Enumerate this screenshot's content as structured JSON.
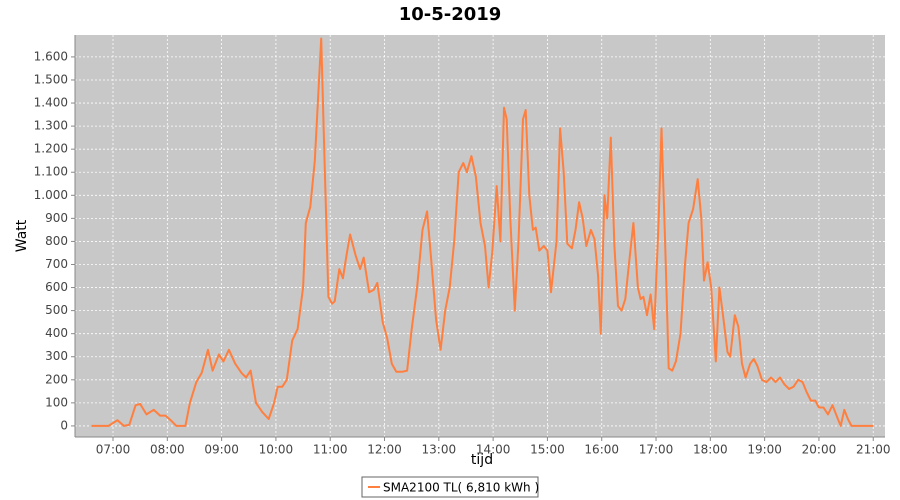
{
  "chart_data": {
    "type": "line",
    "title": "10-5-2019",
    "x_label": "tijd",
    "y_label": "Watt",
    "x": [
      "06:36",
      "06:55",
      "07:05",
      "07:12",
      "07:18",
      "07:25",
      "07:30",
      "07:37",
      "07:45",
      "07:52",
      "07:58",
      "08:05",
      "08:10",
      "08:15",
      "08:20",
      "08:25",
      "08:32",
      "08:38",
      "08:45",
      "08:50",
      "08:57",
      "09:02",
      "09:08",
      "09:15",
      "09:22",
      "09:27",
      "09:32",
      "09:38",
      "09:45",
      "09:52",
      "09:58",
      "10:02",
      "10:07",
      "10:12",
      "10:18",
      "10:24",
      "10:30",
      "10:33",
      "10:38",
      "10:43",
      "10:48",
      "10:50",
      "10:53",
      "10:58",
      "11:02",
      "11:05",
      "11:10",
      "11:14",
      "11:18",
      "11:22",
      "11:28",
      "11:33",
      "11:37",
      "11:43",
      "11:48",
      "11:52",
      "11:58",
      "12:03",
      "12:08",
      "12:13",
      "12:20",
      "12:25",
      "12:30",
      "12:36",
      "12:42",
      "12:47",
      "12:52",
      "12:57",
      "13:02",
      "13:07",
      "13:12",
      "13:17",
      "13:22",
      "13:27",
      "13:31",
      "13:36",
      "13:41",
      "13:46",
      "13:51",
      "13:55",
      "13:59",
      "14:04",
      "14:08",
      "14:12",
      "14:15",
      "14:19",
      "14:24",
      "14:28",
      "14:33",
      "14:36",
      "14:40",
      "14:44",
      "14:47",
      "14:51",
      "14:56",
      "15:00",
      "15:04",
      "15:10",
      "15:14",
      "15:18",
      "15:22",
      "15:27",
      "15:31",
      "15:35",
      "15:39",
      "15:43",
      "15:48",
      "15:52",
      "15:56",
      "15:59",
      "16:03",
      "16:06",
      "16:10",
      "16:14",
      "16:18",
      "16:22",
      "16:26",
      "16:30",
      "16:35",
      "16:40",
      "16:43",
      "16:46",
      "16:50",
      "16:54",
      "16:58",
      "17:03",
      "17:06",
      "17:10",
      "17:14",
      "17:18",
      "17:22",
      "17:27",
      "17:32",
      "17:36",
      "17:41",
      "17:46",
      "17:50",
      "17:53",
      "17:57",
      "18:01",
      "18:06",
      "18:10",
      "18:14",
      "18:19",
      "18:22",
      "18:27",
      "18:31",
      "18:35",
      "18:39",
      "18:44",
      "18:48",
      "18:52",
      "18:57",
      "19:02",
      "19:07",
      "19:12",
      "19:17",
      "19:22",
      "19:27",
      "19:32",
      "19:37",
      "19:42",
      "19:46",
      "19:51",
      "19:56",
      "20:00",
      "20:05",
      "20:10",
      "20:15",
      "20:20",
      "20:24",
      "20:28",
      "20:32",
      "20:36",
      "20:45",
      "21:00"
    ],
    "series": [
      {
        "name": "SMA2100 TL( 6,810 kWh )",
        "color": "#ff7f3f",
        "values": [
          0,
          0,
          25,
          0,
          5,
          90,
          95,
          50,
          70,
          45,
          45,
          20,
          0,
          0,
          0,
          100,
          190,
          230,
          330,
          240,
          310,
          280,
          330,
          270,
          230,
          210,
          240,
          100,
          60,
          30,
          100,
          170,
          170,
          200,
          370,
          420,
          600,
          880,
          950,
          1150,
          1530,
          1680,
          1250,
          560,
          530,
          540,
          680,
          640,
          740,
          830,
          740,
          680,
          730,
          580,
          590,
          620,
          450,
          380,
          270,
          235,
          235,
          240,
          420,
          600,
          850,
          930,
          700,
          460,
          330,
          500,
          600,
          800,
          1100,
          1140,
          1100,
          1170,
          1080,
          880,
          780,
          600,
          750,
          1040,
          800,
          1380,
          1330,
          900,
          500,
          800,
          1330,
          1370,
          1000,
          850,
          860,
          760,
          780,
          760,
          580,
          800,
          1290,
          1100,
          790,
          770,
          850,
          970,
          900,
          780,
          850,
          810,
          650,
          400,
          1000,
          900,
          1250,
          780,
          520,
          500,
          550,
          700,
          880,
          600,
          550,
          560,
          480,
          570,
          420,
          900,
          1290,
          800,
          250,
          240,
          280,
          400,
          700,
          880,
          940,
          1070,
          900,
          630,
          710,
          600,
          280,
          600,
          480,
          320,
          300,
          480,
          430,
          270,
          210,
          270,
          290,
          260,
          200,
          190,
          210,
          190,
          210,
          180,
          160,
          170,
          200,
          190,
          150,
          110,
          110,
          80,
          80,
          50,
          90,
          40,
          0,
          70,
          30,
          0,
          0,
          0
        ]
      }
    ],
    "xlim": [
      "06:18",
      "21:13"
    ],
    "xticks": [
      "07:00",
      "08:00",
      "09:00",
      "10:00",
      "11:00",
      "12:00",
      "13:00",
      "14:00",
      "15:00",
      "16:00",
      "17:00",
      "18:00",
      "19:00",
      "20:00",
      "21:00"
    ],
    "ylim": [
      -48,
      1695
    ],
    "yticks": [
      0,
      100,
      200,
      300,
      400,
      500,
      600,
      700,
      800,
      900,
      {
        "value": 1000,
        "label": "1.000"
      },
      {
        "value": 1100,
        "label": "1.100"
      },
      {
        "value": 1200,
        "label": "1.200"
      },
      {
        "value": 1300,
        "label": "1.300"
      },
      {
        "value": 1400,
        "label": "1.400"
      },
      {
        "value": 1500,
        "label": "1.500"
      },
      {
        "value": 1600,
        "label": "1.600"
      }
    ],
    "grid": true,
    "legend": "bottom"
  }
}
